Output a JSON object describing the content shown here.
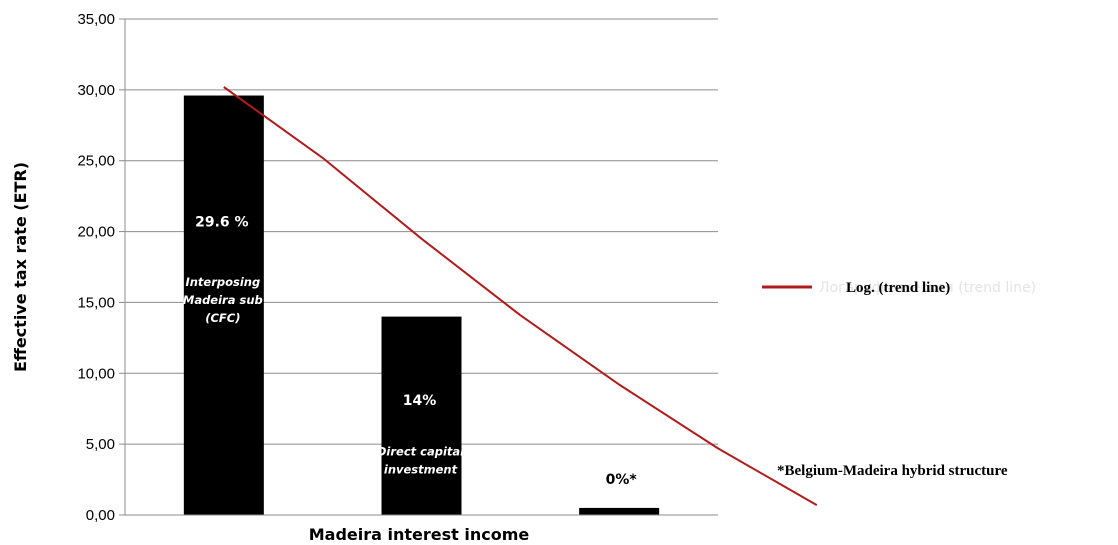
{
  "chart_data": {
    "type": "bar",
    "categories": [
      "Interposing Madeira sub (CFC)",
      "Direct capital investment",
      "Belgium-Madeira hybrid structure"
    ],
    "values": [
      29.6,
      14.0,
      0.5
    ],
    "value_labels": [
      "29.6 %",
      "14%",
      "0%*"
    ],
    "bar_descriptions": [
      [
        "Interposing",
        "Madeira sub",
        "(CFC)"
      ],
      [
        "Direct capital",
        "investment"
      ],
      []
    ],
    "bar_color": "#000000",
    "title": "",
    "xlabel": "Madeira interest income",
    "ylabel": "Effective tax rate (ETR)",
    "ylim": [
      0,
      35
    ],
    "yticks": [
      "0,00",
      "5,00",
      "10,00",
      "15,00",
      "20,00",
      "25,00",
      "30,00",
      "35,00"
    ],
    "grid": true,
    "trendline": {
      "type": "logarithmic",
      "label": "Log. (trend line)",
      "ghost_label": "Логарифмическая (trend line)",
      "color": "#b01c1c",
      "points": [
        [
          0.0,
          30.2
        ],
        [
          0.5,
          25.2
        ],
        [
          1.0,
          19.5
        ],
        [
          1.5,
          14.1
        ],
        [
          2.0,
          9.2
        ],
        [
          2.5,
          4.7
        ],
        [
          3.0,
          0.7
        ]
      ]
    },
    "legend": "right",
    "footnote": "*Belgium-Madeira hybrid  structure"
  }
}
